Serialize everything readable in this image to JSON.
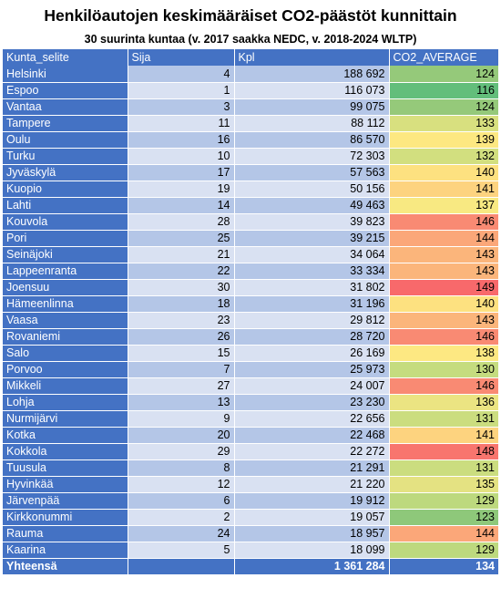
{
  "title": "Henkilöautojen keskimääräiset CO2-päästöt kunnittain",
  "subtitle": "30 suurinta kuntaa (v. 2017 saakka NEDC, v. 2018-2024 WLTP)",
  "headers": {
    "kunta": "Kunta_selite",
    "sija": "Sija",
    "kpl": "Kpl",
    "co2": "CO2_AVERAGE"
  },
  "rows": [
    {
      "kunta": "Helsinki",
      "sija": "4",
      "kpl": "188 692",
      "co2": "124",
      "color": "#95c97a"
    },
    {
      "kunta": "Espoo",
      "sija": "1",
      "kpl": "116 073",
      "co2": "116",
      "color": "#63be7b"
    },
    {
      "kunta": "Vantaa",
      "sija": "3",
      "kpl": "99 075",
      "co2": "124",
      "color": "#95c97a"
    },
    {
      "kunta": "Tampere",
      "sija": "11",
      "kpl": "88 112",
      "co2": "133",
      "color": "#d8e07f"
    },
    {
      "kunta": "Oulu",
      "sija": "16",
      "kpl": "86 570",
      "co2": "139",
      "color": "#fde881"
    },
    {
      "kunta": "Turku",
      "sija": "10",
      "kpl": "72 303",
      "co2": "132",
      "color": "#d2df7f"
    },
    {
      "kunta": "Jyväskylä",
      "sija": "17",
      "kpl": "57 563",
      "co2": "140",
      "color": "#fde180"
    },
    {
      "kunta": "Kuopio",
      "sija": "19",
      "kpl": "50 156",
      "co2": "141",
      "color": "#fdd37f"
    },
    {
      "kunta": "Lahti",
      "sija": "14",
      "kpl": "49 463",
      "co2": "137",
      "color": "#f8e982"
    },
    {
      "kunta": "Kouvola",
      "sija": "28",
      "kpl": "39 823",
      "co2": "146",
      "color": "#f98a73"
    },
    {
      "kunta": "Pori",
      "sija": "25",
      "kpl": "39 215",
      "co2": "144",
      "color": "#fba779"
    },
    {
      "kunta": "Seinäjoki",
      "sija": "21",
      "kpl": "34 064",
      "co2": "143",
      "color": "#fbb57b"
    },
    {
      "kunta": "Lappeenranta",
      "sija": "22",
      "kpl": "33 334",
      "co2": "143",
      "color": "#fbb57b"
    },
    {
      "kunta": "Joensuu",
      "sija": "30",
      "kpl": "31 802",
      "co2": "149",
      "color": "#f8696b"
    },
    {
      "kunta": "Hämeenlinna",
      "sija": "18",
      "kpl": "31 196",
      "co2": "140",
      "color": "#fde180"
    },
    {
      "kunta": "Vaasa",
      "sija": "23",
      "kpl": "29 812",
      "co2": "143",
      "color": "#fbb57b"
    },
    {
      "kunta": "Rovaniemi",
      "sija": "26",
      "kpl": "28 720",
      "co2": "146",
      "color": "#f98a73"
    },
    {
      "kunta": "Salo",
      "sija": "15",
      "kpl": "26 169",
      "co2": "138",
      "color": "#fde882"
    },
    {
      "kunta": "Porvoo",
      "sija": "7",
      "kpl": "25 973",
      "co2": "130",
      "color": "#c5dc7f"
    },
    {
      "kunta": "Mikkeli",
      "sija": "27",
      "kpl": "24 007",
      "co2": "146",
      "color": "#f98a73"
    },
    {
      "kunta": "Lohja",
      "sija": "13",
      "kpl": "23 230",
      "co2": "136",
      "color": "#ebe482"
    },
    {
      "kunta": "Nurmijärvi",
      "sija": "9",
      "kpl": "22 656",
      "co2": "131",
      "color": "#cbdd7f"
    },
    {
      "kunta": "Kotka",
      "sija": "20",
      "kpl": "22 468",
      "co2": "141",
      "color": "#fdd37f"
    },
    {
      "kunta": "Kokkola",
      "sija": "29",
      "kpl": "22 272",
      "co2": "148",
      "color": "#f8756e"
    },
    {
      "kunta": "Tuusula",
      "sija": "8",
      "kpl": "21 291",
      "co2": "131",
      "color": "#cbdd7f"
    },
    {
      "kunta": "Hyvinkää",
      "sija": "12",
      "kpl": "21 220",
      "co2": "135",
      "color": "#e4e282"
    },
    {
      "kunta": "Järvenpää",
      "sija": "6",
      "kpl": "19 912",
      "co2": "129",
      "color": "#bdd97e"
    },
    {
      "kunta": "Kirkkonummi",
      "sija": "2",
      "kpl": "19 057",
      "co2": "123",
      "color": "#8ec87a"
    },
    {
      "kunta": "Rauma",
      "sija": "24",
      "kpl": "18 957",
      "co2": "144",
      "color": "#fba779"
    },
    {
      "kunta": "Kaarina",
      "sija": "5",
      "kpl": "18 099",
      "co2": "129",
      "color": "#bdd97e"
    }
  ],
  "total": {
    "label": "Yhteensä",
    "kpl": "1 361 284",
    "co2": "134"
  }
}
